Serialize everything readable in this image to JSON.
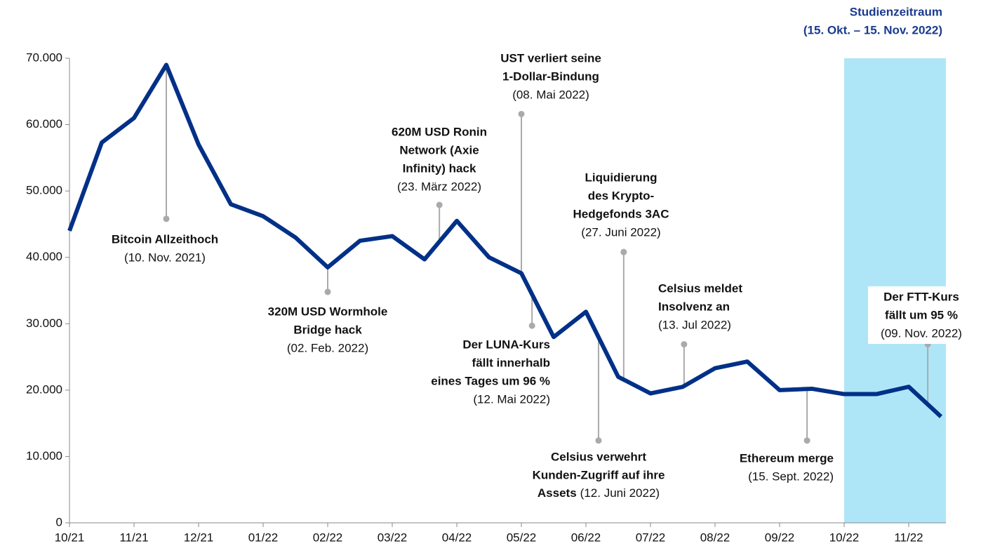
{
  "chart_data": {
    "type": "line",
    "categories": [
      "10/21",
      null,
      "11/21",
      null,
      "12/21",
      null,
      "01/22",
      null,
      "02/22",
      null,
      "03/22",
      null,
      "04/22",
      null,
      "05/22",
      null,
      "06/22",
      null,
      "07/22",
      null,
      "08/22",
      null,
      "09/22",
      null,
      "10/22",
      null,
      "11/22",
      null
    ],
    "series": [
      {
        "name": "Bitcoin",
        "color": "#003087",
        "values": [
          44000,
          57300,
          61000,
          69000,
          57000,
          48000,
          46200,
          43000,
          38500,
          42500,
          43200,
          39700,
          45500,
          40000,
          37600,
          28000,
          31800,
          22000,
          19500,
          20500,
          23300,
          24300,
          20000,
          20200,
          19400,
          19400,
          20500,
          16000
        ]
      }
    ],
    "ylim": [
      0,
      70000
    ],
    "yticks": [
      0,
      {
        "value": 10000,
        "label": "10.000"
      },
      {
        "value": 20000,
        "label": "20.000"
      },
      {
        "value": 30000,
        "label": "30.000"
      },
      {
        "value": 40000,
        "label": "40.000"
      },
      {
        "value": 50000,
        "label": "50.000"
      },
      {
        "value": 60000,
        "label": "60.000"
      },
      {
        "value": 70000,
        "label": "70.000"
      }
    ],
    "highlight": {
      "title": [
        "Studienzeitraum",
        "(15. Okt. – 15. Nov. 2022)"
      ],
      "from": 24,
      "color": "#aee6f8"
    },
    "annotations": [
      {
        "bold": [
          "Bitcoin Allzeithoch"
        ],
        "date": "(10. Nov. 2021)",
        "at": 3,
        "to": 45800
      },
      {
        "bold": [
          "320M USD Wormhole",
          "Bridge hack"
        ],
        "date": "(02. Feb. 2022)",
        "at": 8,
        "to": 34800
      },
      {
        "bold": [
          "620M USD Ronin",
          "Network (Axie",
          "Infinity) hack"
        ],
        "date": "(23. März 2022)",
        "at": 11.46,
        "to": 47900
      },
      {
        "bold": [
          "UST verliert seine",
          "1-Dollar-Bindung"
        ],
        "date": "(08. Mai 2022)",
        "at": 14,
        "to": 61600
      },
      {
        "bold": [
          "Der LUNA-Kurs",
          "fällt innerhalb",
          "eines Tages um 96 %"
        ],
        "date": "(12. Mai 2022)",
        "at": 14.33,
        "to": 29700
      },
      {
        "bold": [
          "Liquidierung",
          "des Krypto-",
          "Hedgefonds 3AC"
        ],
        "date": "(27. Juni 2022)",
        "at": 17.17,
        "to": 40800
      },
      {
        "bold": [
          "Celsius verwehrt",
          "Kunden-Zugriff auf ihre",
          "Assets"
        ],
        "date": "(12. Juni 2022)",
        "at": 16.39,
        "to": 12400
      },
      {
        "bold": [
          "Celsius meldet",
          "Insolvenz an"
        ],
        "date": "(13. Jul 2022)",
        "at": 19.04,
        "to": 26900
      },
      {
        "bold": [
          "Ethereum merge"
        ],
        "date": "(15. Sept. 2022)",
        "at": 22.85,
        "to": 12400
      },
      {
        "bold": [
          "Der FTT-Kurs",
          "fällt um 95 %"
        ],
        "date": "(09. Nov. 2022)",
        "at": 26.59,
        "to": 26900
      }
    ]
  }
}
